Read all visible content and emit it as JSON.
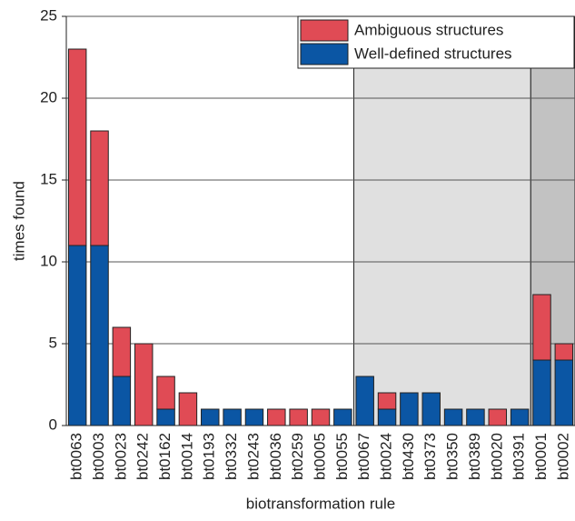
{
  "chart_data": {
    "type": "stacked_bar",
    "x_label": "biotransformation rule",
    "y_label": "times found",
    "categories": [
      "bt0063",
      "bt0003",
      "bt0023",
      "bt0242",
      "bt0162",
      "bt0014",
      "bt0193",
      "bt0332",
      "bt0243",
      "bt0036",
      "bt0259",
      "bt0005",
      "bt0055",
      "bt0067",
      "bt0024",
      "bt0430",
      "bt0373",
      "bt0350",
      "bt0389",
      "bt0020",
      "bt0391",
      "bt0001",
      "bt0002"
    ],
    "series": [
      {
        "name": "Well-defined structures",
        "color": "#0b56a4",
        "values": [
          11,
          11,
          3,
          0,
          1,
          0,
          1,
          1,
          1,
          0,
          0,
          0,
          1,
          3,
          1,
          2,
          2,
          1,
          1,
          0,
          1,
          4,
          4
        ]
      },
      {
        "name": "Ambiguous structures",
        "color": "#e04b55",
        "values": [
          12,
          7,
          3,
          5,
          2,
          2,
          0,
          0,
          0,
          1,
          1,
          1,
          0,
          0,
          1,
          0,
          0,
          0,
          0,
          1,
          0,
          4,
          1
        ]
      }
    ],
    "ylim": [
      0,
      25
    ],
    "yticks": [
      0,
      5,
      10,
      15,
      20,
      25
    ],
    "grid": true
  }
}
